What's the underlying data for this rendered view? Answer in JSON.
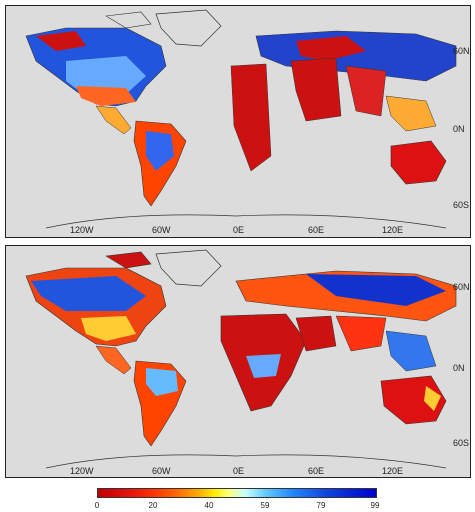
{
  "panels": [
    {
      "name": "top",
      "lon_labels": [
        "120W",
        "60W",
        "0E",
        "60E",
        "120E"
      ],
      "lat_labels": [
        "60N",
        "0N",
        "60S"
      ]
    },
    {
      "name": "bottom",
      "lon_labels": [
        "120W",
        "60W",
        "0E",
        "60E",
        "120E"
      ],
      "lat_labels": [
        "60N",
        "0N",
        "60S"
      ]
    }
  ],
  "colorbar": {
    "ticks": [
      "0",
      "20",
      "40",
      "59",
      "79",
      "99"
    ],
    "min": 0,
    "max": 99,
    "colors": [
      "#c00000",
      "#ff3300",
      "#ffaa00",
      "#ffff80",
      "#66ccff",
      "#1144dd",
      "#0000cc"
    ]
  }
}
